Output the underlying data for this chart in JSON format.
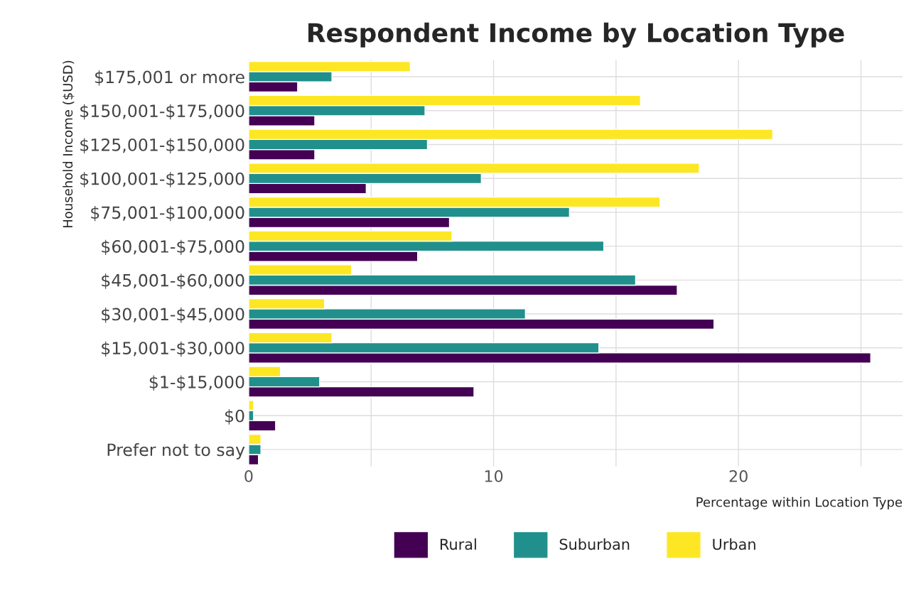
{
  "chart_data": {
    "type": "bar",
    "orientation": "horizontal",
    "title": "Respondent Income by Location Type",
    "xlabel": "Percentage within Location Type",
    "ylabel": "Household Income ($USD)",
    "categories": [
      "$175,001 or more",
      "$150,001-$175,000",
      "$125,001-$150,000",
      "$100,001-$125,000",
      "$75,001-$100,000",
      "$60,001-$75,000",
      "$45,001-$60,000",
      "$30,001-$45,000",
      "$15,001-$30,000",
      "$1-$15,000",
      "$0",
      "Prefer not to say"
    ],
    "series": [
      {
        "name": "Rural",
        "color": "#440154",
        "values": [
          2.0,
          2.7,
          2.7,
          4.8,
          8.2,
          6.9,
          17.5,
          19.0,
          25.4,
          9.2,
          1.1,
          0.4
        ]
      },
      {
        "name": "Suburban",
        "color": "#21908c",
        "values": [
          3.4,
          7.2,
          7.3,
          9.5,
          13.1,
          14.5,
          15.8,
          11.3,
          14.3,
          2.9,
          0.2,
          0.5
        ]
      },
      {
        "name": "Urban",
        "color": "#fde725",
        "values": [
          6.6,
          16.0,
          21.4,
          18.4,
          16.8,
          8.3,
          4.2,
          3.1,
          3.4,
          1.3,
          0.2,
          0.5
        ]
      }
    ],
    "xlim": [
      0,
      26.7
    ],
    "xticks": [
      0,
      {
        "value": 5,
        "label": null
      },
      10,
      {
        "value": 15,
        "label": null
      },
      20,
      {
        "value": 25,
        "label": null
      }
    ],
    "grid": true,
    "legend": "bottom"
  }
}
